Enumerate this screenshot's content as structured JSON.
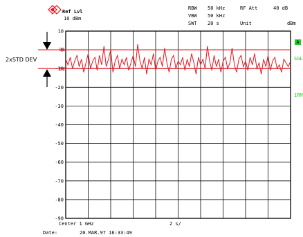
{
  "header": {
    "ref_lvl_label": "Ref Lvl",
    "ref_lvl_value": "10 dBm",
    "rbw_label": "RBW",
    "rbw_value": "50 kHz",
    "vbw_label": "VBW",
    "vbw_value": "50 kHz",
    "swt_label": "SWT",
    "swt_value": "20 s",
    "rf_att_label": "RF Att",
    "rf_att_value": "40 dB",
    "unit_label": "Unit",
    "unit_value": "dBm"
  },
  "annotation": {
    "label": "2xSTD DEV",
    "marker_d1": "D1",
    "marker_d2": "D2"
  },
  "side_labels": {
    "trace_a": "A",
    "sgl": "SGL",
    "trace_mode": "1RM"
  },
  "footer": {
    "center": "Center 1 GHz",
    "span": "2 s/",
    "date_label": "Date:",
    "date_value": "20.MAR.97  16:33:49"
  },
  "colors": {
    "trace": "#e8151f",
    "grid": "#000000",
    "side_label": "#22cc22",
    "logo": "#e8151f"
  },
  "chart_data": {
    "type": "line",
    "ylim": [
      -90,
      10
    ],
    "ytick_labels": [
      "10",
      "0",
      "-10",
      "-20",
      "-30",
      "-40",
      "-50",
      "-60",
      "-70",
      "-80",
      "-90"
    ],
    "ytick_values": [
      10,
      0,
      -10,
      -20,
      -30,
      -40,
      -50,
      -60,
      -70,
      -80,
      -90
    ],
    "xlim": [
      0,
      20
    ],
    "x_divisions": 10,
    "reference_lines": [
      {
        "label": "D1",
        "value": 0
      },
      {
        "label": "D2",
        "value": -10
      }
    ],
    "series": [
      {
        "x": [
          0,
          0.2,
          0.4,
          0.6,
          0.8,
          1.0,
          1.2,
          1.4,
          1.6,
          1.8,
          2.0,
          2.2,
          2.4,
          2.6,
          2.8,
          3.0,
          3.2,
          3.4,
          3.6,
          3.8,
          4.0,
          4.2,
          4.4,
          4.6,
          4.8,
          5.0,
          5.2,
          5.4,
          5.6,
          5.8,
          6.0,
          6.2,
          6.4,
          6.6,
          6.8,
          7.0,
          7.2,
          7.4,
          7.6,
          7.8,
          8.0,
          8.2,
          8.4,
          8.6,
          8.8,
          9.0,
          9.2,
          9.4,
          9.6,
          9.8,
          10.0,
          10.2,
          10.4,
          10.6,
          10.8,
          11.0,
          11.2,
          11.4,
          11.6,
          11.8,
          12.0,
          12.2,
          12.4,
          12.6,
          12.8,
          13.0,
          13.2,
          13.4,
          13.6,
          13.8,
          14.0,
          14.2,
          14.4,
          14.6,
          14.8,
          15.0,
          15.2,
          15.4,
          15.6,
          15.8,
          16.0,
          16.2,
          16.4,
          16.6,
          16.8,
          17.0,
          17.2,
          17.4,
          17.6,
          17.8,
          18.0,
          18.2,
          18.4,
          18.6,
          18.8,
          19.0,
          19.2,
          19.4,
          19.6,
          19.8,
          20.0
        ],
        "values": [
          -5,
          -8,
          -4,
          -10,
          -6,
          -3,
          -9,
          -5,
          -12,
          -7,
          -2,
          -10,
          -6,
          -4,
          -11,
          -3,
          -8,
          2,
          -9,
          -5,
          0,
          -12,
          -6,
          -3,
          -10,
          -5,
          -8,
          -4,
          -11,
          -7,
          -3,
          -9,
          3,
          -6,
          -10,
          -4,
          -13,
          -5,
          -8,
          -2,
          -11,
          -6,
          -4,
          -9,
          1,
          -7,
          -12,
          -5,
          -3,
          -10,
          -6,
          -8,
          -4,
          -11,
          -5,
          -9,
          -2,
          -7,
          -13,
          -4,
          -8,
          -5,
          -10,
          2,
          -6,
          -11,
          -3,
          -9,
          -5,
          -12,
          -6,
          -4,
          -10,
          -7,
          1,
          -8,
          -12,
          -5,
          -3,
          -9,
          -6,
          -11,
          -4,
          -8,
          -2,
          -10,
          -7,
          -13,
          -5,
          -9,
          -3,
          -11,
          -6,
          -4,
          -10,
          -8,
          -12,
          -5,
          -7,
          -9,
          -6
        ]
      }
    ]
  }
}
